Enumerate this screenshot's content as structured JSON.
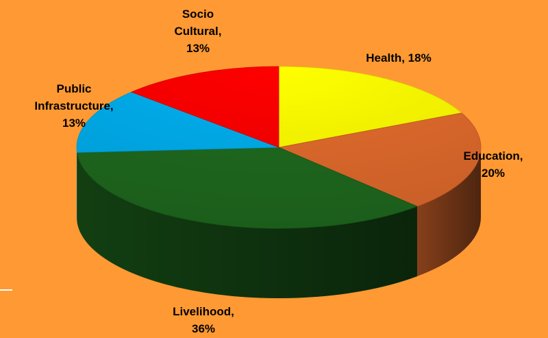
{
  "chart_data": {
    "type": "pie",
    "slices": [
      {
        "label": "Health",
        "value": 18,
        "label_lines": [
          "Health, 18%"
        ],
        "color": "#FFFF00"
      },
      {
        "label": "Education",
        "value": 20,
        "label_lines": [
          "Education,",
          "20%"
        ],
        "color": "#E46C2D"
      },
      {
        "label": "Livelihood",
        "value": 36,
        "label_lines": [
          "Livelihood,",
          "36%"
        ],
        "color": "#1F6B1F"
      },
      {
        "label": "Public Infrastructure",
        "value": 13,
        "label_lines": [
          "Public",
          "Infrastructure,",
          "13%"
        ],
        "color": "#00B0F0"
      },
      {
        "label": "Socio Cultural",
        "value": 13,
        "label_lines": [
          "Socio",
          "Cultural,",
          "13%"
        ],
        "color": "#FF0000"
      }
    ],
    "style": "3d-pie",
    "background_color": "#FF9933",
    "legend": "none",
    "data_labels": "outside"
  }
}
